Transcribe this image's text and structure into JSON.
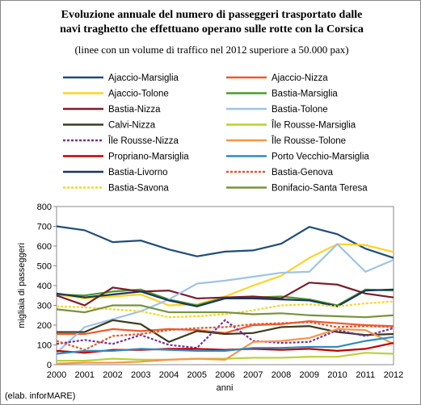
{
  "chart_data": {
    "type": "line",
    "title": [
      "Evoluzione annuale del numero di passeggeri trasportato dalle",
      "navi traghetto che effettuano operano sulle rotte con la Corsica"
    ],
    "subtitle": "(linee con un volume di traffico nel 2012 superiore a 50.000 pax)",
    "y_label": "migliaia di passeggeri",
    "x_label": "anni",
    "source": "(elab. inforMARE)",
    "categories": [
      "2000",
      "2001",
      "2002",
      "2003",
      "2004",
      "2005",
      "2006",
      "2007",
      "2008",
      "2009",
      "2010",
      "2011",
      "2012"
    ],
    "ylim": [
      0,
      800
    ],
    "yticks": [
      0,
      100,
      200,
      300,
      400,
      500,
      600,
      700,
      800
    ],
    "grid": false,
    "series": [
      {
        "name": "Ajaccio-Marsiglia",
        "color": "#1f4e79",
        "dashed": false,
        "values": [
          700,
          680,
          620,
          628,
          583,
          548,
          572,
          578,
          612,
          697,
          660,
          587,
          540
        ]
      },
      {
        "name": "Ajaccio-Nizza",
        "color": "#f0592a",
        "dashed": false,
        "values": [
          155,
          155,
          180,
          170,
          180,
          175,
          160,
          200,
          205,
          220,
          210,
          200,
          195
        ]
      },
      {
        "name": "Ajaccio-Tolone",
        "color": "#ffd320",
        "dashed": false,
        "values": [
          355,
          335,
          345,
          355,
          300,
          305,
          345,
          400,
          450,
          540,
          610,
          605,
          570
        ]
      },
      {
        "name": "Bastia-Marsiglia",
        "color": "#4e9a2a",
        "dashed": false,
        "values": [
          355,
          350,
          370,
          380,
          330,
          300,
          340,
          340,
          345,
          330,
          300,
          380,
          375
        ]
      },
      {
        "name": "Bastia-Nizza",
        "color": "#7b1c2a",
        "dashed": false,
        "values": [
          350,
          300,
          390,
          370,
          375,
          335,
          340,
          345,
          335,
          415,
          405,
          360,
          340
        ]
      },
      {
        "name": "Bastia-Tolone",
        "color": "#9dc3e6",
        "dashed": false,
        "values": [
          60,
          190,
          230,
          270,
          330,
          410,
          425,
          445,
          465,
          470,
          610,
          470,
          530
        ]
      },
      {
        "name": "Calvi-Nizza",
        "color": "#3b3b1f",
        "dashed": false,
        "values": [
          165,
          165,
          225,
          205,
          115,
          170,
          155,
          160,
          190,
          195,
          165,
          150,
          155
        ]
      },
      {
        "name": "Île Rousse-Marsiglia",
        "color": "#b7d332",
        "dashed": false,
        "values": [
          20,
          20,
          30,
          25,
          25,
          30,
          30,
          35,
          35,
          40,
          40,
          60,
          55
        ]
      },
      {
        "name": "Île Rousse-Nizza",
        "color": "#7030a0",
        "dashed": true,
        "values": [
          105,
          125,
          105,
          150,
          100,
          85,
          225,
          120,
          110,
          115,
          175,
          145,
          185
        ]
      },
      {
        "name": "Île Rousse-Tolone",
        "color": "#f79646",
        "dashed": false,
        "values": [
          5,
          10,
          10,
          15,
          25,
          30,
          25,
          115,
          120,
          135,
          180,
          175,
          105
        ]
      },
      {
        "name": "Propriano-Marsiglia",
        "color": "#c00000",
        "dashed": false,
        "values": [
          70,
          60,
          75,
          75,
          80,
          80,
          75,
          80,
          75,
          80,
          70,
          80,
          110
        ]
      },
      {
        "name": "Porto Vecchio-Marsiglia",
        "color": "#2e8bc0",
        "dashed": false,
        "values": [
          55,
          70,
          70,
          80,
          75,
          70,
          70,
          85,
          85,
          90,
          90,
          120,
          140
        ]
      },
      {
        "name": "Bastia-Livorno",
        "color": "#17375e",
        "dashed": false,
        "values": [
          360,
          340,
          355,
          370,
          325,
          295,
          335,
          335,
          330,
          325,
          295,
          375,
          380
        ]
      },
      {
        "name": "Bastia-Genova",
        "color": "#e8562a",
        "dashed": true,
        "values": [
          120,
          75,
          145,
          155,
          175,
          185,
          190,
          205,
          210,
          215,
          190,
          195,
          190
        ]
      },
      {
        "name": "Bastia-Savona",
        "color": "#ffd320",
        "dashed": true,
        "values": [
          295,
          290,
          280,
          270,
          240,
          245,
          255,
          275,
          300,
          305,
          295,
          310,
          320
        ]
      },
      {
        "name": "Bonifacio-Santa Teresa",
        "color": "#77933c",
        "dashed": false,
        "values": [
          280,
          265,
          300,
          300,
          265,
          265,
          265,
          255,
          260,
          250,
          245,
          240,
          250
        ]
      }
    ]
  }
}
